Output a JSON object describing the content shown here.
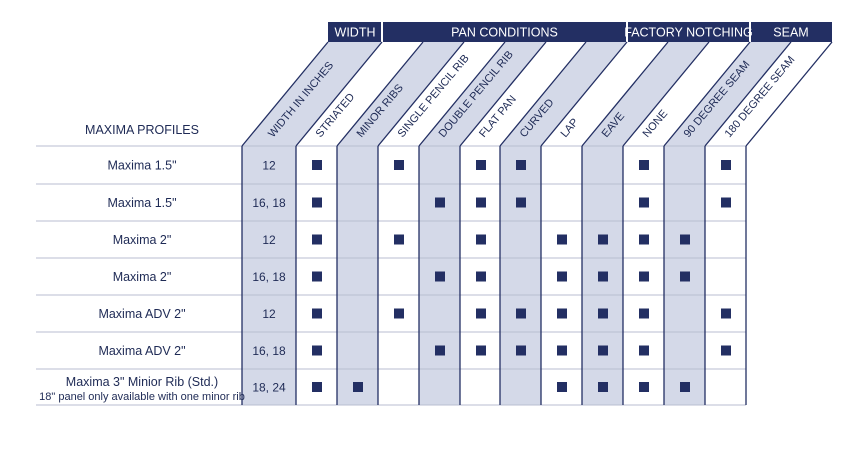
{
  "title": "MAXIMA PROFILES",
  "groups": [
    {
      "label": "WIDTH",
      "col_start": 0,
      "col_end": 0
    },
    {
      "label": "PAN CONDITIONS",
      "col_start": 1,
      "col_end": 6
    },
    {
      "label": "FACTORY NOTCHING",
      "col_start": 7,
      "col_end": 9
    },
    {
      "label": "SEAM",
      "col_start": 10,
      "col_end": 11
    }
  ],
  "columns": [
    "WIDTH IN INCHES",
    "STRIATED",
    "MINOR RIBS",
    "SINGLE PENCIL RIB",
    "DOUBLE PENCIL RIB",
    "FLAT PAN",
    "CURVED",
    "LAP",
    "EAVE",
    "NONE",
    "90 DEGREE SEAM",
    "180 DEGREE SEAM"
  ],
  "rows": [
    {
      "profile": "Maxima 1.5\"",
      "width": "12",
      "marks": [
        true,
        false,
        true,
        false,
        true,
        true,
        false,
        false,
        true,
        false,
        true
      ]
    },
    {
      "profile": "Maxima 1.5\"",
      "width": "16, 18",
      "marks": [
        true,
        false,
        false,
        true,
        true,
        true,
        false,
        false,
        true,
        false,
        true
      ]
    },
    {
      "profile": "Maxima  2\"",
      "width": "12",
      "marks": [
        true,
        false,
        true,
        false,
        true,
        false,
        true,
        true,
        true,
        true,
        false
      ]
    },
    {
      "profile": "Maxima  2\"",
      "width": "16, 18",
      "marks": [
        true,
        false,
        false,
        true,
        true,
        false,
        true,
        true,
        true,
        true,
        false
      ]
    },
    {
      "profile": "Maxima ADV  2\"",
      "width": "12",
      "marks": [
        true,
        false,
        true,
        false,
        true,
        true,
        true,
        true,
        true,
        false,
        true
      ]
    },
    {
      "profile": "Maxima ADV  2\"",
      "width": "16, 18",
      "marks": [
        true,
        false,
        false,
        true,
        true,
        true,
        true,
        true,
        true,
        false,
        true
      ]
    },
    {
      "profile": "Maxima  3\"  Minior Rib (Std.)",
      "width": "18, 24",
      "note": "18\" panel only available with one minor rib",
      "marks": [
        true,
        true,
        false,
        false,
        false,
        false,
        true,
        true,
        true,
        true,
        false
      ]
    }
  ],
  "colors": {
    "header_bg": "#232f63",
    "mark": "#232f63",
    "shade": "#d4d9e8",
    "line": "#232f63",
    "grid": "#b9bed0"
  }
}
